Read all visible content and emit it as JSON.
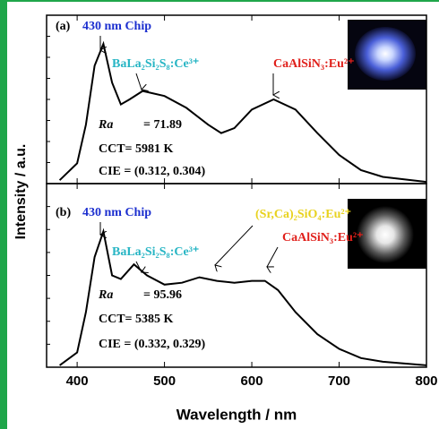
{
  "chart_data": [
    {
      "type": "line",
      "label": "(a)",
      "ylabel": "Intensity / a.u.",
      "color": "#000000",
      "x": [
        380,
        400,
        410,
        420,
        430,
        440,
        450,
        460,
        475,
        500,
        525,
        550,
        565,
        580,
        600,
        625,
        650,
        675,
        700,
        725,
        750,
        800
      ],
      "values": [
        0.02,
        0.12,
        0.35,
        0.7,
        0.83,
        0.6,
        0.47,
        0.5,
        0.55,
        0.52,
        0.45,
        0.35,
        0.3,
        0.33,
        0.44,
        0.5,
        0.44,
        0.3,
        0.17,
        0.08,
        0.04,
        0.01
      ],
      "xlim": [
        365,
        800
      ],
      "ylim": [
        0,
        1
      ],
      "annotations": [
        {
          "text": "430 nm Chip",
          "color": "#1c2fcf"
        },
        {
          "text": "BaLa₂Si₂S₈:Ce³⁺",
          "color": "#27b5c4"
        },
        {
          "text": "CaAlSiN₃:Eu²⁺",
          "color": "#e0201b"
        },
        {
          "text": "Ra",
          "color": "#000000"
        },
        {
          "text": "= 71.89",
          "color": "#000000"
        },
        {
          "text": "CCT= 5981 K",
          "color": "#000000"
        },
        {
          "text": "CIE = (0.312, 0.304)",
          "color": "#000000"
        }
      ]
    },
    {
      "type": "line",
      "label": "(b)",
      "xlabel": "Wavelength / nm",
      "color": "#000000",
      "x": [
        380,
        400,
        410,
        420,
        430,
        440,
        450,
        465,
        480,
        500,
        520,
        540,
        560,
        580,
        600,
        615,
        630,
        650,
        675,
        700,
        725,
        750,
        800
      ],
      "values": [
        0.01,
        0.08,
        0.3,
        0.6,
        0.74,
        0.5,
        0.48,
        0.56,
        0.5,
        0.45,
        0.46,
        0.49,
        0.47,
        0.46,
        0.47,
        0.47,
        0.42,
        0.3,
        0.18,
        0.1,
        0.05,
        0.03,
        0.01
      ],
      "xlim": [
        365,
        800
      ],
      "ylim": [
        0,
        1
      ],
      "xticks": [
        400,
        500,
        600,
        700,
        800
      ],
      "annotations": [
        {
          "text": "430 nm Chip",
          "color": "#1c2fcf"
        },
        {
          "text": "BaLa₂Si₂S₈:Ce³⁺",
          "color": "#27b5c4"
        },
        {
          "text": "(Sr,Ca)₂SiO₄:Eu²⁺",
          "color": "#e8d21e"
        },
        {
          "text": "CaAlSiN₃:Eu²⁺",
          "color": "#e0201b"
        },
        {
          "text": "Ra",
          "color": "#000000"
        },
        {
          "text": "= 95.96",
          "color": "#000000"
        },
        {
          "text": "CCT= 5385 K",
          "color": "#000000"
        },
        {
          "text": "CIE = (0.332, 0.329)",
          "color": "#000000"
        }
      ]
    }
  ]
}
